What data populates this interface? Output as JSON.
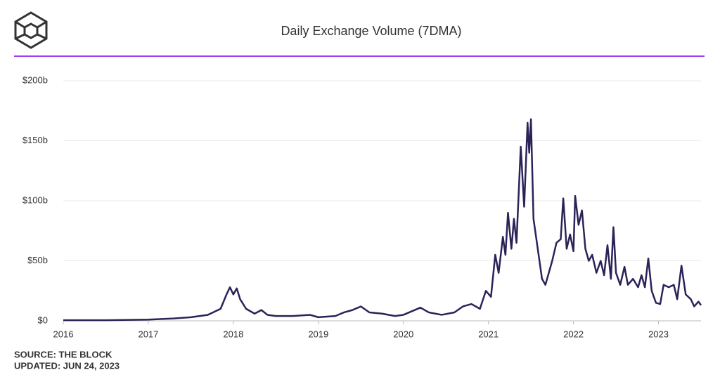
{
  "chart_data": {
    "type": "line",
    "title": "Daily Exchange Volume (7DMA)",
    "source": "SOURCE: THE BLOCK",
    "updated": "UPDATED: JUN 24, 2023",
    "x": [
      2016.0,
      2016.5,
      2017.0,
      2017.3,
      2017.5,
      2017.7,
      2017.85,
      2017.92,
      2017.96,
      2018.0,
      2018.04,
      2018.08,
      2018.15,
      2018.25,
      2018.33,
      2018.4,
      2018.5,
      2018.7,
      2018.9,
      2019.0,
      2019.2,
      2019.3,
      2019.4,
      2019.5,
      2019.6,
      2019.75,
      2019.9,
      2020.0,
      2020.1,
      2020.2,
      2020.3,
      2020.45,
      2020.6,
      2020.7,
      2020.8,
      2020.9,
      2020.97,
      2021.03,
      2021.08,
      2021.12,
      2021.17,
      2021.2,
      2021.23,
      2021.27,
      2021.3,
      2021.33,
      2021.38,
      2021.42,
      2021.46,
      2021.48,
      2021.5,
      2021.53,
      2021.58,
      2021.63,
      2021.67,
      2021.75,
      2021.8,
      2021.85,
      2021.88,
      2021.92,
      2021.96,
      2022.0,
      2022.02,
      2022.06,
      2022.1,
      2022.14,
      2022.18,
      2022.22,
      2022.27,
      2022.32,
      2022.36,
      2022.4,
      2022.44,
      2022.47,
      2022.5,
      2022.55,
      2022.6,
      2022.64,
      2022.7,
      2022.76,
      2022.8,
      2022.84,
      2022.88,
      2022.92,
      2022.97,
      2023.02,
      2023.06,
      2023.12,
      2023.18,
      2023.22,
      2023.27,
      2023.32,
      2023.38,
      2023.42,
      2023.47,
      2023.5
    ],
    "series": [
      {
        "color": "#2b2358",
        "values": [
          0.5,
          0.5,
          1,
          2,
          3,
          5,
          10,
          22,
          28,
          22,
          27,
          18,
          10,
          6,
          9,
          5,
          4,
          4,
          5,
          3,
          4,
          7,
          9,
          12,
          7,
          6,
          4,
          5,
          8,
          11,
          7,
          5,
          7,
          12,
          14,
          10,
          25,
          20,
          55,
          40,
          70,
          55,
          90,
          60,
          85,
          65,
          145,
          95,
          165,
          140,
          168,
          85,
          60,
          35,
          30,
          50,
          65,
          68,
          102,
          60,
          72,
          58,
          104,
          80,
          92,
          60,
          50,
          55,
          40,
          50,
          38,
          63,
          35,
          78,
          40,
          30,
          45,
          30,
          35,
          28,
          38,
          28,
          52,
          25,
          15,
          14,
          30,
          28,
          30,
          18,
          46,
          22,
          18,
          12,
          16,
          13
        ]
      }
    ],
    "xlim": [
      2016,
      2023.5
    ],
    "xticks": [
      2016,
      2017,
      2018,
      2019,
      2020,
      2021,
      2022,
      2023
    ],
    "ylim": [
      0,
      200
    ],
    "yticks": [
      {
        "value": 0,
        "label": "$0"
      },
      {
        "value": 50,
        "label": "$50b"
      },
      {
        "value": 100,
        "label": "$100b"
      },
      {
        "value": 150,
        "label": "$150b"
      },
      {
        "value": 200,
        "label": "$200b"
      }
    ],
    "grid": true
  }
}
